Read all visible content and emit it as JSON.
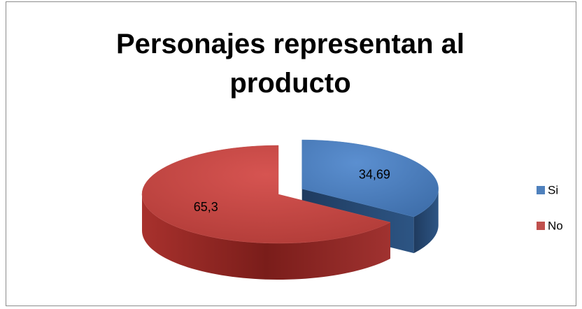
{
  "chart_data": {
    "type": "pie",
    "title": "Personajes representan al producto",
    "categories": [
      "Si",
      "No"
    ],
    "values": [
      34.69,
      65.3
    ],
    "value_labels": [
      "34,69",
      "65,3"
    ],
    "colors": [
      "#4f81bd",
      "#c0504d"
    ],
    "legend": "right"
  }
}
